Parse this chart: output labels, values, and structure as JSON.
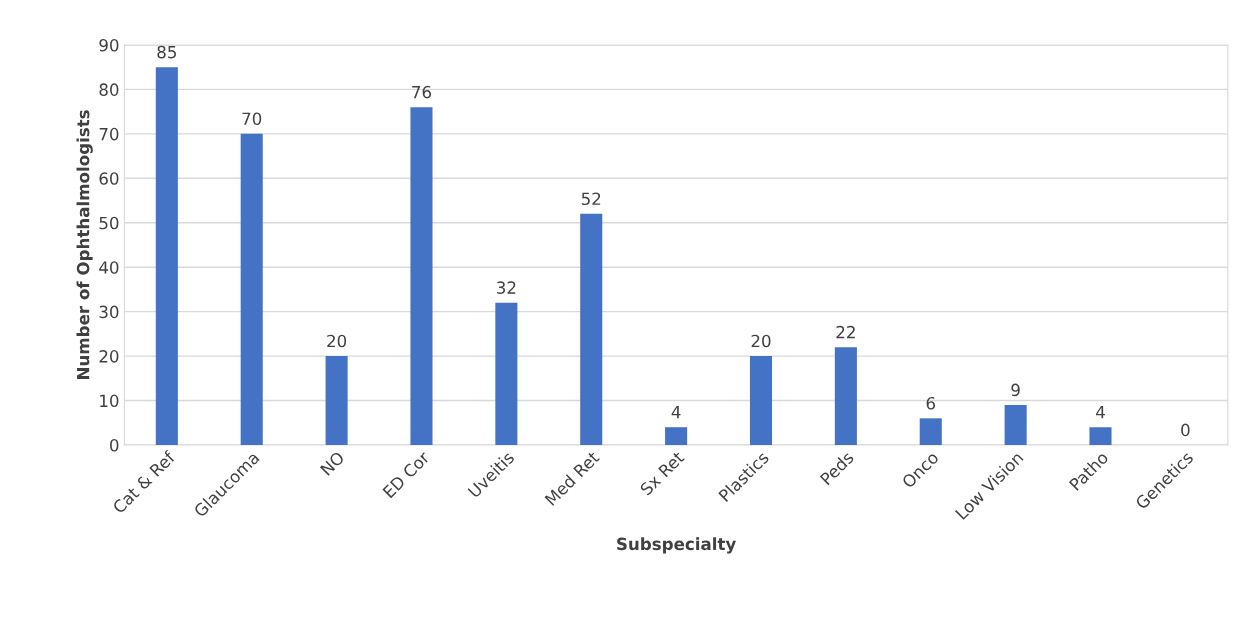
{
  "chart_data": {
    "type": "bar",
    "xlabel": "Subspecialty",
    "ylabel": "Number of Ophthalmologists",
    "categories": [
      "Cat & Ref",
      "Glaucoma",
      "NO",
      "ED Cor",
      "Uveitis",
      "Med Ret",
      "Sx Ret",
      "Plastics",
      "Peds",
      "Onco",
      "Low Vision",
      "Patho",
      "Genetics"
    ],
    "values": [
      85,
      70,
      20,
      76,
      32,
      52,
      4,
      20,
      22,
      6,
      9,
      4,
      0
    ],
    "color": "#4472c4",
    "ylim": [
      0,
      90
    ],
    "yticks": [
      0,
      10,
      20,
      30,
      40,
      50,
      60,
      70,
      80,
      90
    ],
    "grid": "y",
    "data_labels": true,
    "legend": false
  }
}
